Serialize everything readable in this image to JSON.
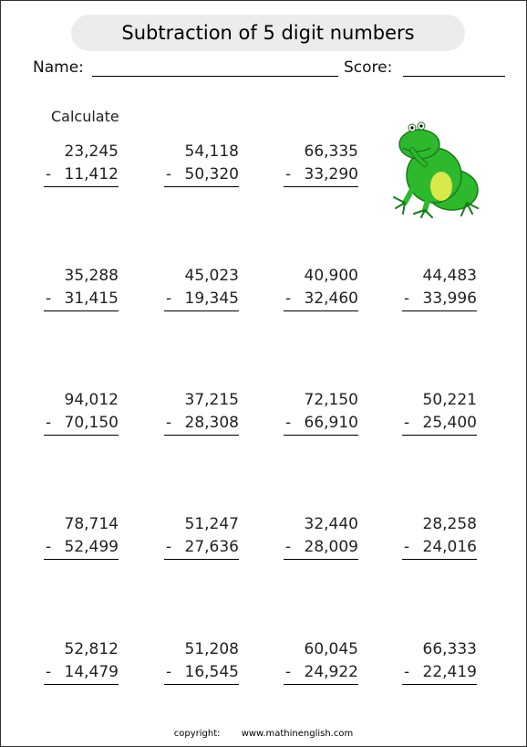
{
  "title": "Subtraction of 5 digit numbers",
  "name_label": "Name:",
  "score_label": "Score:",
  "instruction": "Calculate",
  "problems": [
    [
      "23,245",
      "11,412"
    ],
    [
      "54,118",
      "50,320"
    ],
    [
      "66,335",
      "33,290"
    ],
    [
      "35,288",
      "31,415"
    ],
    [
      "45,023",
      "19,345"
    ],
    [
      "40,900",
      "32,460"
    ],
    [
      "44,483",
      "33,996"
    ],
    [
      "94,012",
      "70,150"
    ],
    [
      "37,215",
      "28,308"
    ],
    [
      "72,150",
      "66,910"
    ],
    [
      "50,221",
      "25,400"
    ],
    [
      "78,714",
      "52,499"
    ],
    [
      "51,247",
      "27,636"
    ],
    [
      "32,440",
      "28,009"
    ],
    [
      "28,258",
      "24,016"
    ],
    [
      "52,812",
      "14,479"
    ],
    [
      "51,208",
      "16,545"
    ],
    [
      "60,045",
      "24,922"
    ],
    [
      "66,333",
      "22,419"
    ]
  ],
  "operator": "-",
  "footer": {
    "copyright": "copyright:",
    "site": "www.mathinenglish.com"
  },
  "colors": {
    "frog_body": "#2eb82e",
    "frog_dark": "#1a7a1a",
    "frog_belly": "#d9e84a"
  }
}
